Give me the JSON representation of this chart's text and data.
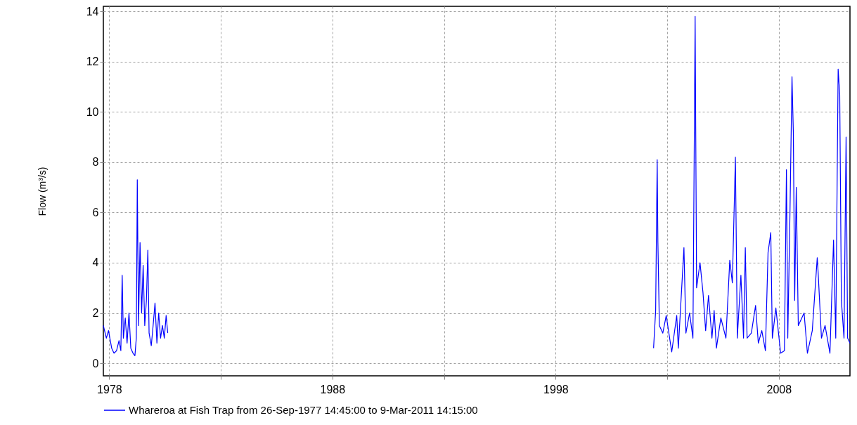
{
  "chart_data": {
    "type": "line",
    "ylabel": "Flow (m³/s)",
    "xlim": [
      "1977-09-26T14:45",
      "2011-03-09T14:15"
    ],
    "ylim": [
      -0.5,
      14.2
    ],
    "yticks": [
      0,
      2,
      4,
      6,
      8,
      10,
      12,
      14
    ],
    "xticks": [
      {
        "value": "1978-01-01",
        "label": "1978"
      },
      {
        "value": "1983-01-01",
        "label": null
      },
      {
        "value": "1988-01-01",
        "label": "1988"
      },
      {
        "value": "1993-01-01",
        "label": null
      },
      {
        "value": "1998-01-01",
        "label": "1998"
      },
      {
        "value": "2003-01-01",
        "label": null
      },
      {
        "value": "2008-01-01",
        "label": "2008"
      }
    ],
    "grid": true,
    "legend": "bottom",
    "marker": "none",
    "line_style": "solid",
    "x": [
      "1977-09-26T14:45",
      "1977-11-15",
      "1977-12-20",
      "1978-02-10",
      "1978-03-20",
      "1978-05-01",
      "1978-06-10",
      "1978-07-10",
      "1978-08-01",
      "1978-08-20",
      "1978-09-20",
      "1978-10-20",
      "1978-11-20",
      "1978-12-20",
      "1979-01-25",
      "1979-02-25",
      "1979-03-20",
      "1979-04-05",
      "1979-04-25",
      "1979-05-20",
      "1979-06-15",
      "1979-07-10",
      "1979-08-05",
      "1979-09-01",
      "1979-09-25",
      "1979-10-15",
      "1979-11-20",
      "1979-12-20",
      "1980-01-20",
      "1980-02-20",
      "1980-03-20",
      "1980-04-20",
      "1980-05-20",
      "1980-06-20",
      "1980-07-20",
      "1980-08-15",
      "1991-01-01",
      "2002-05-22",
      "2002-06-25",
      "2002-07-20",
      "2002-08-01",
      "2002-08-25",
      "2002-10-20",
      "2002-12-15",
      "2003-03-15",
      "2003-06-05",
      "2003-07-01",
      "2003-10-01",
      "2003-11-02",
      "2004-01-01",
      "2004-02-25",
      "2004-04-01",
      "2004-04-25",
      "2004-06-20",
      "2004-08-08",
      "2004-09-20",
      "2004-11-06",
      "2005-01-01",
      "2005-02-06",
      "2005-03-15",
      "2005-05-27",
      "2005-08-18",
      "2005-10-20",
      "2005-12-01",
      "2006-01-20",
      "2006-01-30",
      "2006-02-20",
      "2006-04-20",
      "2006-06-02",
      "2006-07-01",
      "2006-07-30",
      "2006-10-08",
      "2006-12-16",
      "2007-01-30",
      "2007-03-28",
      "2007-05-26",
      "2007-07-08",
      "2007-08-22",
      "2007-09-16",
      "2007-11-13",
      "2008-01-30",
      "2008-04-01",
      "2008-05-04",
      "2008-05-26",
      "2008-07-01",
      "2008-08-03",
      "2008-08-25",
      "2008-09-16",
      "2008-10-12",
      "2008-11-14",
      "2009-02-17",
      "2009-04-12",
      "2009-07-01",
      "2009-09-20",
      "2009-10-05",
      "2009-11-28",
      "2010-01-26",
      "2010-04-16",
      "2010-06-14",
      "2010-07-20",
      "2010-08-28",
      "2010-09-23",
      "2010-10-20",
      "2010-12-02",
      "2011-01-05",
      "2011-01-30",
      "2011-03-09T14:15"
    ],
    "series": [
      {
        "name": "Whareroa at Fish Trap from 26-Sep-1977 14:45:00 to  9-Mar-2011 14:15:00",
        "color": "#0000ff",
        "values": [
          1.5,
          1.0,
          1.3,
          0.6,
          0.4,
          0.5,
          0.9,
          0.5,
          3.5,
          1.0,
          1.8,
          0.8,
          2.0,
          0.6,
          0.4,
          0.3,
          1.0,
          7.3,
          1.5,
          4.8,
          2.0,
          3.9,
          1.5,
          2.5,
          4.5,
          1.2,
          0.7,
          1.5,
          2.4,
          0.8,
          2.0,
          1.0,
          1.5,
          1.0,
          1.9,
          1.2,
          null,
          0.6,
          2.1,
          8.1,
          4.8,
          1.5,
          1.2,
          1.9,
          0.45,
          1.9,
          0.6,
          4.6,
          1.2,
          2.0,
          1.0,
          13.8,
          3.0,
          4.0,
          2.8,
          1.3,
          2.7,
          1.0,
          2.1,
          0.6,
          1.8,
          1.0,
          4.1,
          3.2,
          8.2,
          5.9,
          1.0,
          3.5,
          1.0,
          4.6,
          1.0,
          1.2,
          2.3,
          0.8,
          1.3,
          0.5,
          4.4,
          5.2,
          1.0,
          2.2,
          0.4,
          0.5,
          7.7,
          1.0,
          6.0,
          11.4,
          9.2,
          2.5,
          7.0,
          1.5,
          2.0,
          0.4,
          1.3,
          4.2,
          3.6,
          1.0,
          1.5,
          0.4,
          4.9,
          1.0,
          11.7,
          10.7,
          2.5,
          1.0,
          9.0,
          1.0,
          0.8
        ]
      }
    ]
  }
}
